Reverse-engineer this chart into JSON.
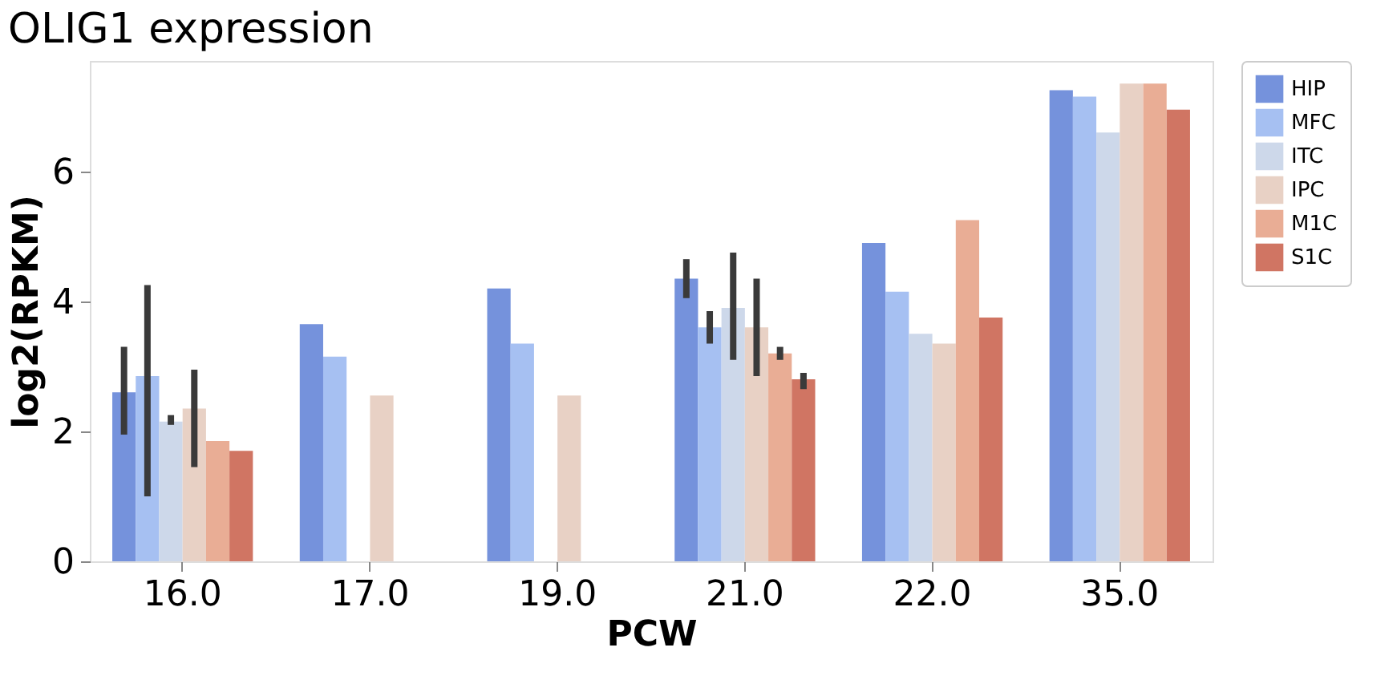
{
  "chart_data": {
    "type": "bar",
    "title": "OLIG1 expression",
    "xlabel": "PCW",
    "ylabel": "log2(RPKM)",
    "categories": [
      "16.0",
      "17.0",
      "19.0",
      "21.0",
      "22.0",
      "35.0"
    ],
    "ylim": [
      0,
      7.7
    ],
    "yticks": [
      0,
      2,
      4,
      6
    ],
    "grid": false,
    "legend": "right",
    "series": [
      {
        "name": "HIP",
        "color": "#7592dc",
        "values": [
          2.6,
          3.65,
          4.2,
          4.35,
          4.9,
          7.25
        ],
        "errors": [
          [
            1.95,
            3.3
          ],
          null,
          null,
          [
            4.05,
            4.65
          ],
          null,
          null
        ]
      },
      {
        "name": "MFC",
        "color": "#a6c0f2",
        "values": [
          2.85,
          3.15,
          3.35,
          3.6,
          4.15,
          7.15
        ],
        "errors": [
          [
            1.0,
            4.25
          ],
          null,
          null,
          [
            3.35,
            3.85
          ],
          null,
          null
        ]
      },
      {
        "name": "ITC",
        "color": "#cdd8ea",
        "values": [
          2.15,
          null,
          null,
          3.9,
          3.5,
          6.6
        ],
        "errors": [
          [
            2.1,
            2.25
          ],
          null,
          null,
          [
            3.1,
            4.75
          ],
          null,
          null
        ]
      },
      {
        "name": "IPC",
        "color": "#e8d1c5",
        "values": [
          2.35,
          2.55,
          2.55,
          3.6,
          3.35,
          7.35
        ],
        "errors": [
          [
            1.45,
            2.95
          ],
          null,
          null,
          [
            2.85,
            4.35
          ],
          null,
          null
        ]
      },
      {
        "name": "M1C",
        "color": "#e9ad95",
        "values": [
          1.85,
          null,
          null,
          3.2,
          5.25,
          7.35
        ],
        "errors": [
          null,
          null,
          null,
          [
            3.1,
            3.3
          ],
          null,
          null
        ]
      },
      {
        "name": "S1C",
        "color": "#d07563",
        "values": [
          1.7,
          null,
          null,
          2.8,
          3.75,
          6.95
        ],
        "errors": [
          null,
          null,
          null,
          [
            2.65,
            2.9
          ],
          null,
          null
        ]
      }
    ]
  }
}
